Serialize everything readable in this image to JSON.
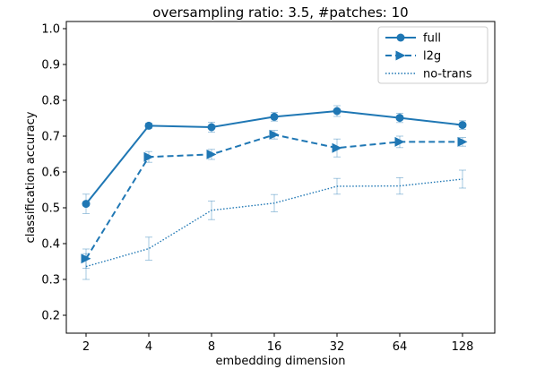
{
  "chart_data": {
    "type": "line",
    "title": "oversampling ratio: 3.5, #patches: 10",
    "xlabel": "embedding dimension",
    "ylabel": "classification accuracy",
    "categories": [
      "2",
      "4",
      "8",
      "16",
      "32",
      "64",
      "128"
    ],
    "ylim": [
      0.15,
      1.02
    ],
    "yticks": [
      "0.2",
      "0.3",
      "0.4",
      "0.5",
      "0.6",
      "0.7",
      "0.8",
      "0.9",
      "1.0"
    ],
    "grid": false,
    "legend_position": "top-right",
    "color": "#1f77b4",
    "series": [
      {
        "name": "full",
        "style": "solid",
        "marker": "circle",
        "values": [
          0.511,
          0.729,
          0.725,
          0.754,
          0.77,
          0.751,
          0.731
        ],
        "errors": [
          0.027,
          0.007,
          0.014,
          0.012,
          0.015,
          0.013,
          0.012
        ]
      },
      {
        "name": "l2g",
        "style": "dashed",
        "marker": "triangle-right",
        "values": [
          0.358,
          0.642,
          0.649,
          0.704,
          0.667,
          0.684,
          0.684
        ],
        "errors": [
          0.027,
          0.015,
          0.014,
          0.012,
          0.025,
          0.016,
          0.012
        ]
      },
      {
        "name": "no-trans",
        "style": "dotted",
        "marker": "none",
        "values": [
          0.336,
          0.386,
          0.493,
          0.513,
          0.56,
          0.561,
          0.58
        ],
        "errors": [
          0.036,
          0.032,
          0.026,
          0.024,
          0.022,
          0.023,
          0.025
        ]
      }
    ]
  }
}
